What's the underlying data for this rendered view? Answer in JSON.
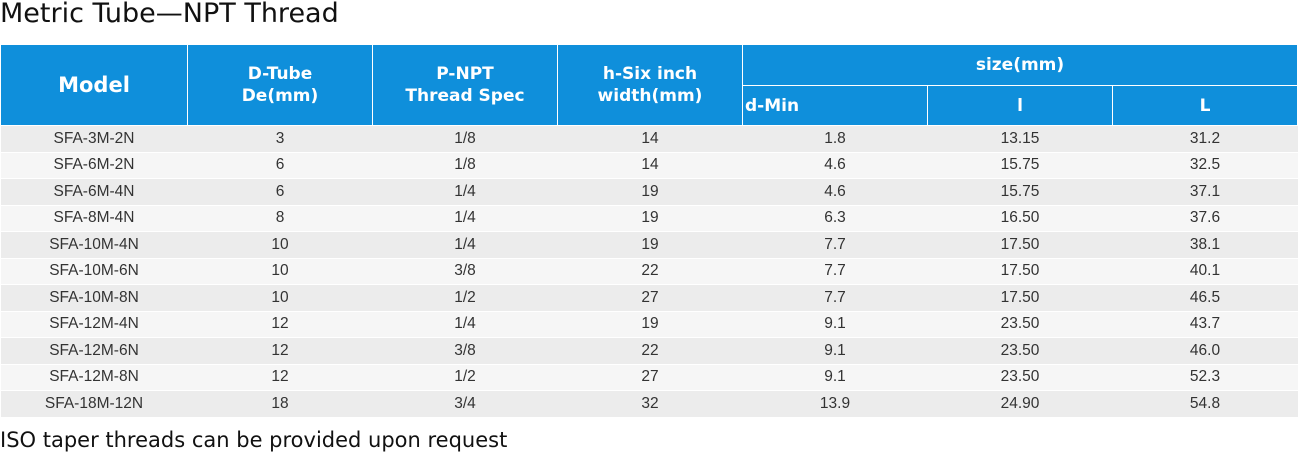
{
  "title": "Metric Tube—NPT Thread",
  "table": {
    "header": [
      [
        "Model"
      ],
      [
        "D-Tube",
        "De(mm)"
      ],
      [
        "P-NPT",
        "Thread Spec"
      ],
      [
        "h-Six inch",
        "width(mm)"
      ]
    ],
    "group": "size(mm)",
    "subheader": [
      "d-Min",
      "l",
      "L"
    ],
    "rows": [
      [
        "SFA-3M-2N",
        "3",
        "1/8",
        "14",
        "1.8",
        "13.15",
        "31.2"
      ],
      [
        "SFA-6M-2N",
        "6",
        "1/8",
        "14",
        "4.6",
        "15.75",
        "32.5"
      ],
      [
        "SFA-6M-4N",
        "6",
        "1/4",
        "19",
        "4.6",
        "15.75",
        "37.1"
      ],
      [
        "SFA-8M-4N",
        "8",
        "1/4",
        "19",
        "6.3",
        "16.50",
        "37.6"
      ],
      [
        "SFA-10M-4N",
        "10",
        "1/4",
        "19",
        "7.7",
        "17.50",
        "38.1"
      ],
      [
        "SFA-10M-6N",
        "10",
        "3/8",
        "22",
        "7.7",
        "17.50",
        "40.1"
      ],
      [
        "SFA-10M-8N",
        "10",
        "1/2",
        "27",
        "7.7",
        "17.50",
        "46.5"
      ],
      [
        "SFA-12M-4N",
        "12",
        "1/4",
        "19",
        "9.1",
        "23.50",
        "43.7"
      ],
      [
        "SFA-12M-6N",
        "12",
        "3/8",
        "22",
        "9.1",
        "23.50",
        "46.0"
      ],
      [
        "SFA-12M-8N",
        "12",
        "1/2",
        "27",
        "9.1",
        "23.50",
        "52.3"
      ],
      [
        "SFA-18M-12N",
        "18",
        "3/4",
        "32",
        "13.9",
        "24.90",
        "54.8"
      ]
    ]
  },
  "note": "ISO taper threads can be provided upon request"
}
